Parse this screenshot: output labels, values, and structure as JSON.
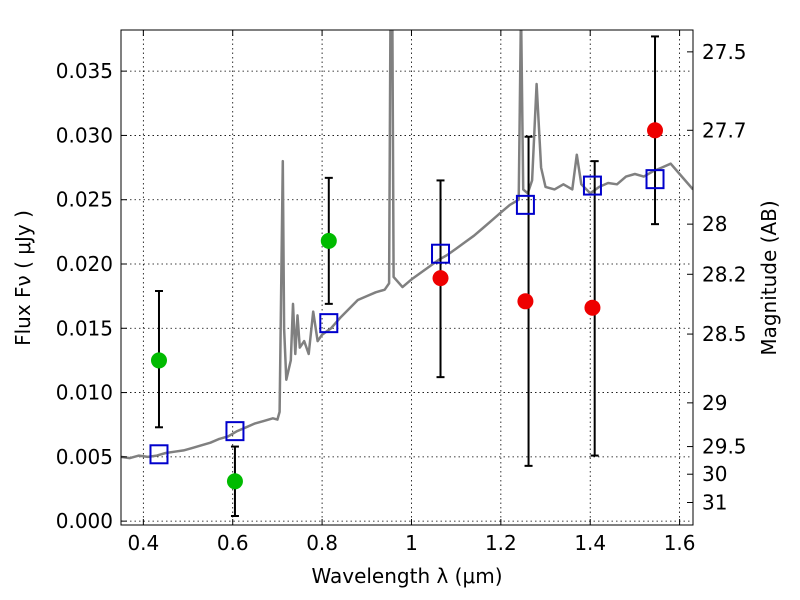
{
  "chart_data": {
    "type": "scatter",
    "xlabel": "Wavelength  λ (μm)",
    "ylabel": "Flux  Fν  ( μJy )",
    "y2label": "Magnitude (AB)",
    "xlim": [
      0.35,
      1.63
    ],
    "ylim": [
      -0.0003,
      0.0382
    ],
    "grid": true,
    "x_ticks": [
      {
        "value": 0.4,
        "label": "0.4"
      },
      {
        "value": 0.6,
        "label": "0.6"
      },
      {
        "value": 0.8,
        "label": "0.8"
      },
      {
        "value": 1.0,
        "label": "1"
      },
      {
        "value": 1.2,
        "label": "1.2"
      },
      {
        "value": 1.4,
        "label": "1.4"
      },
      {
        "value": 1.6,
        "label": "1.6"
      }
    ],
    "y_ticks": [
      {
        "value": 0.0,
        "label": "0.000"
      },
      {
        "value": 0.005,
        "label": "0.005"
      },
      {
        "value": 0.01,
        "label": "0.010"
      },
      {
        "value": 0.015,
        "label": "0.015"
      },
      {
        "value": 0.02,
        "label": "0.020"
      },
      {
        "value": 0.025,
        "label": "0.025"
      },
      {
        "value": 0.03,
        "label": "0.030"
      },
      {
        "value": 0.035,
        "label": "0.035"
      }
    ],
    "y2_ticks": [
      {
        "label": "27.5",
        "flux": 0.0365
      },
      {
        "label": "27.7",
        "flux": 0.0304
      },
      {
        "label": "28",
        "flux": 0.0231
      },
      {
        "label": "28.2",
        "flux": 0.0192
      },
      {
        "label": "28.5",
        "flux": 0.01455
      },
      {
        "label": "29",
        "flux": 0.0092
      },
      {
        "label": "29.5",
        "flux": 0.0058
      },
      {
        "label": "30",
        "flux": 0.00365
      },
      {
        "label": "31",
        "flux": 0.00145
      }
    ],
    "spectrum": {
      "color": "#808080",
      "points": [
        [
          0.35,
          0.005
        ],
        [
          0.37,
          0.0049
        ],
        [
          0.39,
          0.0051
        ],
        [
          0.41,
          0.005
        ],
        [
          0.43,
          0.0051
        ],
        [
          0.45,
          0.0053
        ],
        [
          0.47,
          0.0054
        ],
        [
          0.49,
          0.0055
        ],
        [
          0.51,
          0.0057
        ],
        [
          0.53,
          0.0059
        ],
        [
          0.55,
          0.0061
        ],
        [
          0.57,
          0.0064
        ],
        [
          0.59,
          0.0066
        ],
        [
          0.61,
          0.007
        ],
        [
          0.63,
          0.0073
        ],
        [
          0.65,
          0.0076
        ],
        [
          0.67,
          0.0078
        ],
        [
          0.69,
          0.008
        ],
        [
          0.7,
          0.0079
        ],
        [
          0.705,
          0.0085
        ],
        [
          0.712,
          0.028
        ],
        [
          0.715,
          0.015
        ],
        [
          0.72,
          0.011
        ],
        [
          0.73,
          0.0125
        ],
        [
          0.735,
          0.0169
        ],
        [
          0.74,
          0.013
        ],
        [
          0.745,
          0.016
        ],
        [
          0.75,
          0.0135
        ],
        [
          0.76,
          0.014
        ],
        [
          0.77,
          0.013
        ],
        [
          0.78,
          0.0163
        ],
        [
          0.79,
          0.014
        ],
        [
          0.8,
          0.0145
        ],
        [
          0.82,
          0.015
        ],
        [
          0.84,
          0.0158
        ],
        [
          0.86,
          0.0165
        ],
        [
          0.88,
          0.0172
        ],
        [
          0.9,
          0.0175
        ],
        [
          0.92,
          0.0178
        ],
        [
          0.94,
          0.018
        ],
        [
          0.95,
          0.0185
        ],
        [
          0.953,
          0.04
        ],
        [
          0.957,
          0.04
        ],
        [
          0.96,
          0.019
        ],
        [
          0.98,
          0.0182
        ],
        [
          1.0,
          0.0188
        ],
        [
          1.02,
          0.0193
        ],
        [
          1.04,
          0.0198
        ],
        [
          1.06,
          0.0203
        ],
        [
          1.08,
          0.0207
        ],
        [
          1.1,
          0.0212
        ],
        [
          1.12,
          0.0217
        ],
        [
          1.14,
          0.0222
        ],
        [
          1.16,
          0.0228
        ],
        [
          1.18,
          0.0234
        ],
        [
          1.2,
          0.024
        ],
        [
          1.22,
          0.0246
        ],
        [
          1.24,
          0.025
        ],
        [
          1.245,
          0.04
        ],
        [
          1.25,
          0.0258
        ],
        [
          1.26,
          0.0255
        ],
        [
          1.27,
          0.0265
        ],
        [
          1.28,
          0.034
        ],
        [
          1.29,
          0.0275
        ],
        [
          1.3,
          0.026
        ],
        [
          1.32,
          0.0258
        ],
        [
          1.34,
          0.0262
        ],
        [
          1.36,
          0.0258
        ],
        [
          1.37,
          0.0285
        ],
        [
          1.38,
          0.0262
        ],
        [
          1.4,
          0.0255
        ],
        [
          1.42,
          0.026
        ],
        [
          1.44,
          0.0263
        ],
        [
          1.46,
          0.0262
        ],
        [
          1.48,
          0.0268
        ],
        [
          1.5,
          0.027
        ],
        [
          1.52,
          0.0268
        ],
        [
          1.54,
          0.0272
        ],
        [
          1.56,
          0.0275
        ],
        [
          1.58,
          0.0278
        ],
        [
          1.6,
          0.027
        ],
        [
          1.63,
          0.0258
        ]
      ]
    },
    "series": [
      {
        "marker": "square-open",
        "color": "#0000cc",
        "points": [
          [
            0.435,
            0.0052
          ],
          [
            0.605,
            0.007
          ],
          [
            0.815,
            0.0154
          ],
          [
            1.065,
            0.0208
          ],
          [
            1.255,
            0.0246
          ],
          [
            1.405,
            0.0261
          ],
          [
            1.545,
            0.0266
          ]
        ]
      },
      {
        "marker": "circle",
        "color": "#00bb00",
        "points": [
          [
            0.435,
            0.0125
          ],
          [
            0.605,
            0.0031
          ],
          [
            0.815,
            0.0218
          ]
        ]
      },
      {
        "marker": "circle",
        "color": "#ee0000",
        "points": [
          [
            1.065,
            0.0189
          ],
          [
            1.255,
            0.0171
          ],
          [
            1.405,
            0.0166
          ],
          [
            1.545,
            0.0304
          ]
        ]
      }
    ],
    "error_bars": [
      {
        "x": 0.435,
        "low": 0.0073,
        "high": 0.0179
      },
      {
        "x": 0.605,
        "low": 0.0004,
        "high": 0.0058
      },
      {
        "x": 0.815,
        "low": 0.0169,
        "high": 0.0267
      },
      {
        "x": 1.065,
        "low": 0.0112,
        "high": 0.0265
      },
      {
        "x": 1.262,
        "low": 0.0043,
        "high": 0.0299
      },
      {
        "x": 1.41,
        "low": 0.0051,
        "high": 0.028
      },
      {
        "x": 1.545,
        "low": 0.0231,
        "high": 0.0377
      }
    ]
  }
}
